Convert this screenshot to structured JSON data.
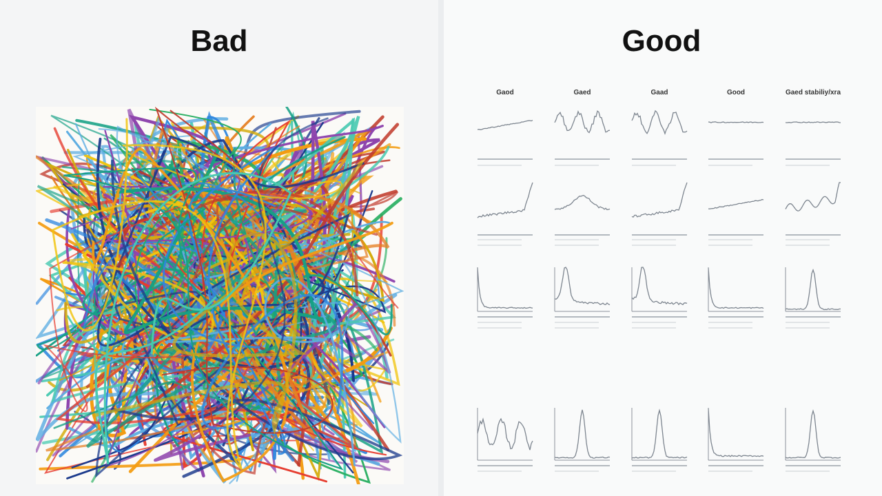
{
  "left": {
    "title": "Bad"
  },
  "right": {
    "title": "Good",
    "columns": [
      "Gaod",
      "Gaed",
      "Gaad",
      "Good",
      "Gaed stabiliy/xra"
    ]
  }
}
